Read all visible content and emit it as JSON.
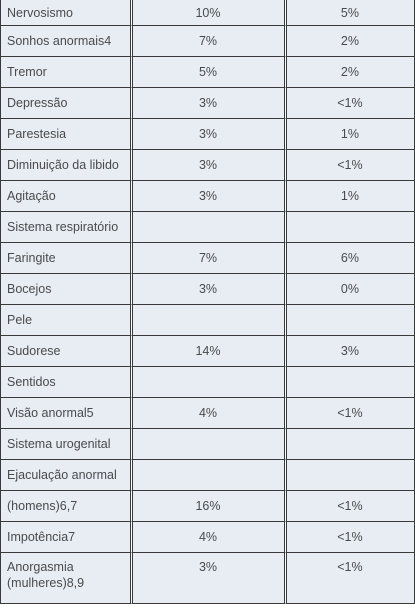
{
  "rows": [
    {
      "label": "Nervosismo",
      "a": "10%",
      "b": "5%"
    },
    {
      "label": "Sonhos anormais4",
      "a": "7%",
      "b": "2%"
    },
    {
      "label": "Tremor",
      "a": "5%",
      "b": "2%"
    },
    {
      "label": "Depressão",
      "a": "3%",
      "b": "<1%"
    },
    {
      "label": "Parestesia",
      "a": "3%",
      "b": "1%"
    },
    {
      "label": "Diminuição da libido",
      "a": "3%",
      "b": "<1%"
    },
    {
      "label": "Agitação",
      "a": "3%",
      "b": "1%"
    },
    {
      "label": "Sistema respiratório",
      "a": "",
      "b": ""
    },
    {
      "label": "Faringite",
      "a": "7%",
      "b": "6%"
    },
    {
      "label": "Bocejos",
      "a": "3%",
      "b": "0%"
    },
    {
      "label": "Pele",
      "a": "",
      "b": ""
    },
    {
      "label": "Sudorese",
      "a": "14%",
      "b": "3%"
    },
    {
      "label": "Sentidos",
      "a": "",
      "b": ""
    },
    {
      "label": "Visão anormal5",
      "a": "4%",
      "b": "<1%"
    },
    {
      "label": "Sistema urogenital",
      "a": "",
      "b": ""
    },
    {
      "label": "Ejaculação anormal",
      "a": "",
      "b": ""
    },
    {
      "label": "(homens)6,7",
      "a": "16%",
      "b": "<1%"
    },
    {
      "label": "Impotência7",
      "a": "4%",
      "b": "<1%"
    },
    {
      "label": "Anorgasmia (mulheres)8,9",
      "a": "3%",
      "b": "<1%"
    }
  ]
}
